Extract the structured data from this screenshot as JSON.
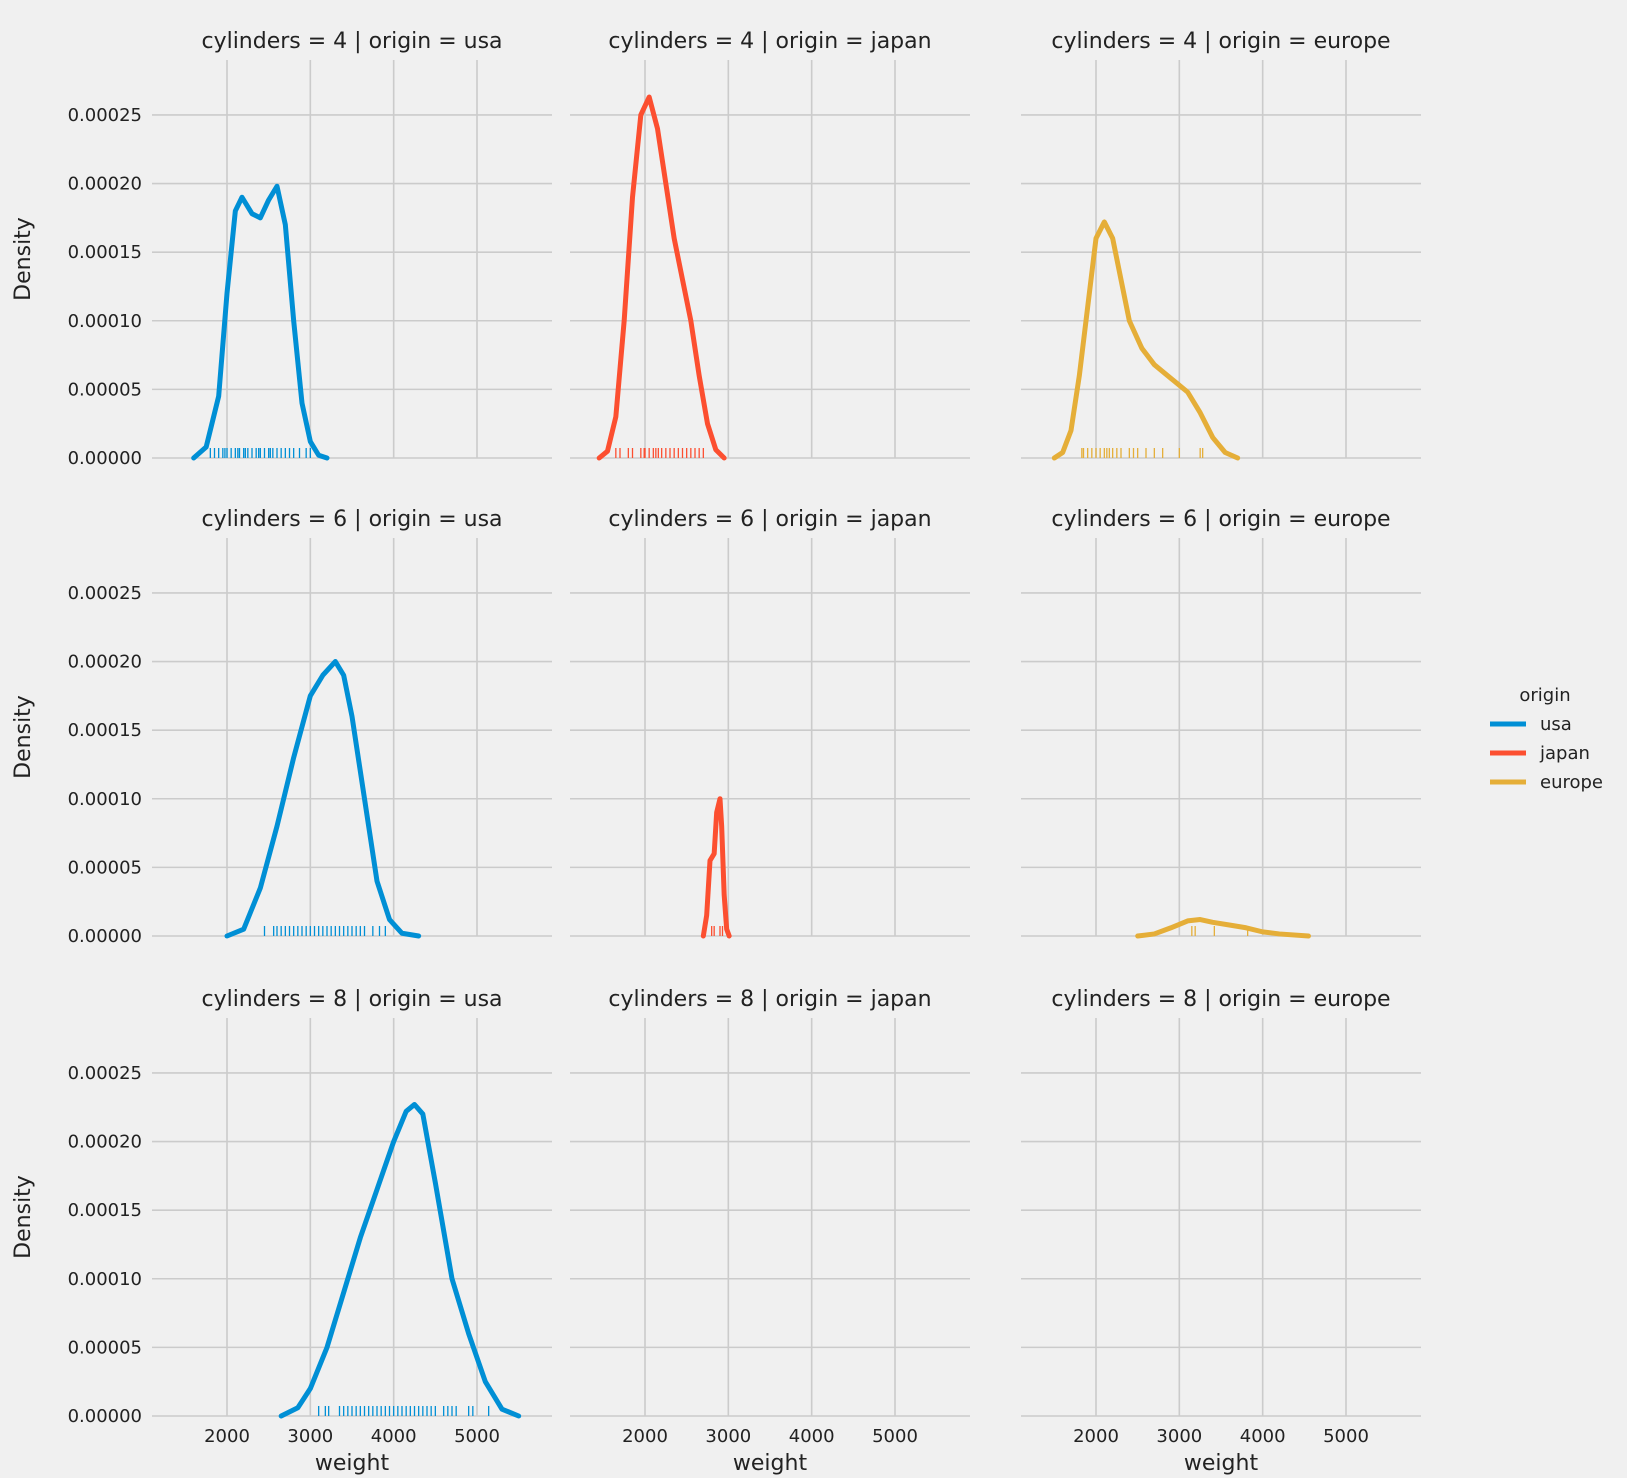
{
  "chart_data": {
    "type": "line",
    "kind": "kde with rug, faceted grid",
    "x_label": "weight",
    "y_label": "Density",
    "xlim": [
      1100,
      5900
    ],
    "ylim": [
      0,
      0.00029
    ],
    "x_ticks": [
      2000,
      3000,
      4000,
      5000
    ],
    "x_tick_labels": [
      "2000",
      "3000",
      "4000",
      "5000"
    ],
    "y_ticks": [
      0,
      5e-05,
      0.0001,
      0.00015,
      0.0002,
      0.00025
    ],
    "y_tick_labels": [
      "0.00000",
      "0.00005",
      "0.00010",
      "0.00015",
      "0.00020",
      "0.00025"
    ],
    "grid": true,
    "legend": {
      "title": "origin",
      "placement": "right",
      "entries": [
        {
          "label": "usa",
          "color": "#008fd5"
        },
        {
          "label": "japan",
          "color": "#fc4f30"
        },
        {
          "label": "europe",
          "color": "#e5ae38"
        }
      ]
    },
    "facets": [
      {
        "title": "cylinders = 4 | origin = usa",
        "color": "#008fd5",
        "series": [
          {
            "x": 1600,
            "y": 0.0
          },
          {
            "x": 1750,
            "y": 8e-06
          },
          {
            "x": 1900,
            "y": 4.5e-05
          },
          {
            "x": 2000,
            "y": 0.00012
          },
          {
            "x": 2100,
            "y": 0.00018
          },
          {
            "x": 2180,
            "y": 0.00019
          },
          {
            "x": 2300,
            "y": 0.000178
          },
          {
            "x": 2400,
            "y": 0.000175
          },
          {
            "x": 2500,
            "y": 0.000188
          },
          {
            "x": 2600,
            "y": 0.000198
          },
          {
            "x": 2700,
            "y": 0.00017
          },
          {
            "x": 2800,
            "y": 0.0001
          },
          {
            "x": 2900,
            "y": 4e-05
          },
          {
            "x": 3000,
            "y": 1.2e-05
          },
          {
            "x": 3100,
            "y": 2e-06
          },
          {
            "x": 3200,
            "y": 0.0
          }
        ],
        "rug": [
          1800,
          1850,
          1900,
          1950,
          1975,
          2000,
          2050,
          2100,
          2130,
          2150,
          2200,
          2220,
          2250,
          2300,
          2350,
          2380,
          2400,
          2450,
          2500,
          2520,
          2550,
          2600,
          2650,
          2700,
          2750,
          2800,
          2870,
          2950,
          3000
        ]
      },
      {
        "title": "cylinders = 4 | origin = japan",
        "color": "#fc4f30",
        "series": [
          {
            "x": 1450,
            "y": 0.0
          },
          {
            "x": 1550,
            "y": 5e-06
          },
          {
            "x": 1650,
            "y": 3e-05
          },
          {
            "x": 1750,
            "y": 0.0001
          },
          {
            "x": 1850,
            "y": 0.00019
          },
          {
            "x": 1950,
            "y": 0.00025
          },
          {
            "x": 2050,
            "y": 0.000263
          },
          {
            "x": 2150,
            "y": 0.00024
          },
          {
            "x": 2250,
            "y": 0.0002
          },
          {
            "x": 2350,
            "y": 0.00016
          },
          {
            "x": 2450,
            "y": 0.00013
          },
          {
            "x": 2550,
            "y": 0.0001
          },
          {
            "x": 2650,
            "y": 6e-05
          },
          {
            "x": 2750,
            "y": 2.5e-05
          },
          {
            "x": 2850,
            "y": 6e-06
          },
          {
            "x": 2950,
            "y": 0.0
          }
        ],
        "rug": [
          1650,
          1700,
          1800,
          1850,
          1950,
          1990,
          2000,
          2050,
          2100,
          2130,
          2160,
          2200,
          2250,
          2300,
          2350,
          2400,
          2450,
          2500,
          2550,
          2600,
          2650,
          2700
        ]
      },
      {
        "title": "cylinders = 4 | origin = europe",
        "color": "#e5ae38",
        "series": [
          {
            "x": 1500,
            "y": 0.0
          },
          {
            "x": 1600,
            "y": 4e-06
          },
          {
            "x": 1700,
            "y": 2e-05
          },
          {
            "x": 1800,
            "y": 6e-05
          },
          {
            "x": 1900,
            "y": 0.00011
          },
          {
            "x": 2000,
            "y": 0.00016
          },
          {
            "x": 2100,
            "y": 0.000172
          },
          {
            "x": 2200,
            "y": 0.00016
          },
          {
            "x": 2300,
            "y": 0.00013
          },
          {
            "x": 2400,
            "y": 0.0001
          },
          {
            "x": 2550,
            "y": 8e-05
          },
          {
            "x": 2700,
            "y": 6.8e-05
          },
          {
            "x": 2900,
            "y": 5.8e-05
          },
          {
            "x": 3100,
            "y": 4.8e-05
          },
          {
            "x": 3250,
            "y": 3.3e-05
          },
          {
            "x": 3400,
            "y": 1.5e-05
          },
          {
            "x": 3550,
            "y": 4e-06
          },
          {
            "x": 3700,
            "y": 0.0
          }
        ],
        "rug": [
          1830,
          1850,
          1900,
          1950,
          2000,
          2050,
          2100,
          2130,
          2160,
          2200,
          2250,
          2300,
          2400,
          2450,
          2500,
          2600,
          2700,
          2800,
          3000,
          3250,
          3280
        ]
      },
      {
        "title": "cylinders = 6 | origin = usa",
        "color": "#008fd5",
        "series": [
          {
            "x": 2000,
            "y": 0.0
          },
          {
            "x": 2200,
            "y": 5e-06
          },
          {
            "x": 2400,
            "y": 3.5e-05
          },
          {
            "x": 2600,
            "y": 8e-05
          },
          {
            "x": 2800,
            "y": 0.00013
          },
          {
            "x": 3000,
            "y": 0.000175
          },
          {
            "x": 3150,
            "y": 0.00019
          },
          {
            "x": 3300,
            "y": 0.0002
          },
          {
            "x": 3400,
            "y": 0.00019
          },
          {
            "x": 3500,
            "y": 0.00016
          },
          {
            "x": 3600,
            "y": 0.00012
          },
          {
            "x": 3700,
            "y": 8e-05
          },
          {
            "x": 3800,
            "y": 4e-05
          },
          {
            "x": 3950,
            "y": 1.2e-05
          },
          {
            "x": 4100,
            "y": 2e-06
          },
          {
            "x": 4300,
            "y": 0.0
          }
        ],
        "rug": [
          2450,
          2560,
          2600,
          2650,
          2700,
          2750,
          2800,
          2850,
          2900,
          2950,
          3000,
          3050,
          3100,
          3150,
          3200,
          3250,
          3300,
          3350,
          3400,
          3450,
          3500,
          3550,
          3600,
          3650,
          3750,
          3830,
          3900
        ]
      },
      {
        "title": "cylinders = 6 | origin = japan",
        "color": "#fc4f30",
        "series": [
          {
            "x": 2700,
            "y": 0.0
          },
          {
            "x": 2740,
            "y": 1.5e-05
          },
          {
            "x": 2780,
            "y": 5.5e-05
          },
          {
            "x": 2830,
            "y": 6e-05
          },
          {
            "x": 2860,
            "y": 9e-05
          },
          {
            "x": 2900,
            "y": 0.0001
          },
          {
            "x": 2920,
            "y": 8e-05
          },
          {
            "x": 2950,
            "y": 3e-05
          },
          {
            "x": 2980,
            "y": 5e-06
          },
          {
            "x": 3010,
            "y": 0.0
          }
        ],
        "rug": [
          2800,
          2830,
          2900,
          2930
        ]
      },
      {
        "title": "cylinders = 6 | origin = europe",
        "color": "#e5ae38",
        "series": [
          {
            "x": 2500,
            "y": 0.0
          },
          {
            "x": 2700,
            "y": 1.5e-06
          },
          {
            "x": 2900,
            "y": 6e-06
          },
          {
            "x": 3100,
            "y": 1.1e-05
          },
          {
            "x": 3250,
            "y": 1.2e-05
          },
          {
            "x": 3400,
            "y": 1e-05
          },
          {
            "x": 3600,
            "y": 8e-06
          },
          {
            "x": 3800,
            "y": 6e-06
          },
          {
            "x": 4000,
            "y": 3e-06
          },
          {
            "x": 4200,
            "y": 1.5e-06
          },
          {
            "x": 4550,
            "y": 0.0
          }
        ],
        "rug": [
          3150,
          3190,
          3420,
          3820
        ]
      },
      {
        "title": "cylinders = 8 | origin = usa",
        "color": "#008fd5",
        "series": [
          {
            "x": 2650,
            "y": 0.0
          },
          {
            "x": 2850,
            "y": 6e-06
          },
          {
            "x": 3000,
            "y": 2e-05
          },
          {
            "x": 3200,
            "y": 5e-05
          },
          {
            "x": 3400,
            "y": 9e-05
          },
          {
            "x": 3600,
            "y": 0.00013
          },
          {
            "x": 3800,
            "y": 0.000165
          },
          {
            "x": 4000,
            "y": 0.0002
          },
          {
            "x": 4150,
            "y": 0.000222
          },
          {
            "x": 4250,
            "y": 0.000227
          },
          {
            "x": 4350,
            "y": 0.00022
          },
          {
            "x": 4500,
            "y": 0.00017
          },
          {
            "x": 4700,
            "y": 0.0001
          },
          {
            "x": 4900,
            "y": 6e-05
          },
          {
            "x": 5100,
            "y": 2.5e-05
          },
          {
            "x": 5300,
            "y": 5e-06
          },
          {
            "x": 5500,
            "y": 0.0
          }
        ],
        "rug": [
          3100,
          3180,
          3220,
          3350,
          3400,
          3450,
          3500,
          3550,
          3600,
          3650,
          3700,
          3750,
          3800,
          3850,
          3900,
          3950,
          4000,
          4050,
          4100,
          4150,
          4200,
          4250,
          4300,
          4350,
          4400,
          4450,
          4500,
          4600,
          4650,
          4700,
          4750,
          4900,
          4950,
          5140
        ]
      },
      {
        "title": "cylinders = 8 | origin = japan",
        "color": "#fc4f30",
        "series": [],
        "rug": []
      },
      {
        "title": "cylinders = 8 | origin = europe",
        "color": "#e5ae38",
        "series": [],
        "rug": []
      }
    ]
  }
}
